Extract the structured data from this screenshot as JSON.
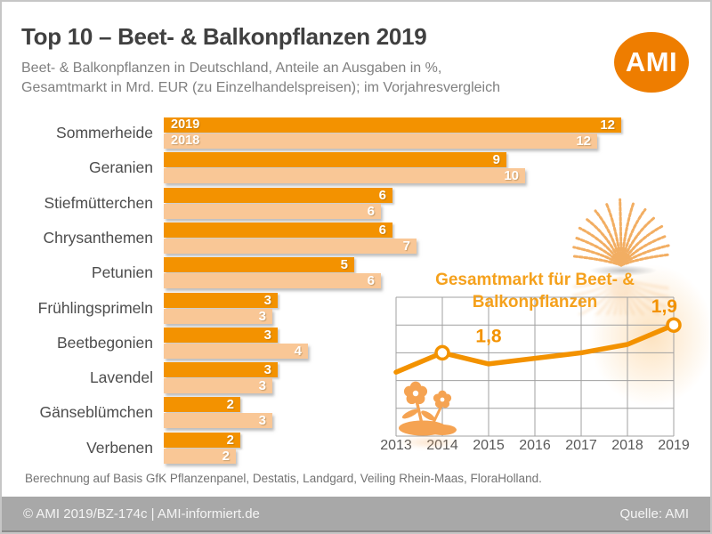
{
  "header": {
    "title": "Top 10 – Beet- & Balkonpflanzen 2019",
    "subtitle_line1": "Beet- & Balkonpflanzen in Deutschland, Anteile an Ausgaben in %,",
    "subtitle_line2": "Gesamtmarkt in Mrd. EUR (zu Einzelhandelspreisen); im Vorjahresvergleich",
    "logo_text": "AMI"
  },
  "colors": {
    "bar_2019_orange": "#f39200",
    "bar_2018_light_orange": "#f9c796",
    "logo_orange": "#ee7d00",
    "inset_title_orange": "#f5a11c",
    "line_orange": "#f39200",
    "grid_gray": "#a0a0a0",
    "heading_gray": "#404040",
    "footer_bar_gray": "#a8a8a8"
  },
  "chart_data": [
    {
      "type": "bar",
      "orientation": "horizontal",
      "title": "Top 10 – Beet- & Balkonpflanzen 2019",
      "unit": "% Anteil an Ausgaben",
      "categories": [
        "Sommerheide",
        "Geranien",
        "Stiefmütterchen",
        "Chrysanthemen",
        "Petunien",
        "Frühlingsprimeln",
        "Beetbegonien",
        "Lavendel",
        "Gänseblümchen",
        "Verbenen"
      ],
      "series": [
        {
          "name": "2019",
          "values": [
            12,
            9,
            6,
            6,
            5,
            3,
            3,
            3,
            2,
            2
          ]
        },
        {
          "name": "2018",
          "values": [
            12,
            10,
            6,
            7,
            6,
            3,
            4,
            3,
            3,
            2
          ]
        }
      ],
      "xlim": [
        0,
        12
      ],
      "value_labels": true
    },
    {
      "type": "line",
      "title": "Gesamtmarkt für Beet- & Balkonpflanzen",
      "title_lines": [
        "Gesamtmarkt für Beet- &",
        "Balkonpflanzen"
      ],
      "unit": "Mrd. EUR",
      "x": [
        "2013",
        "2014",
        "2015",
        "2016",
        "2017",
        "2018",
        "2019"
      ],
      "values": [
        1.73,
        1.8,
        1.76,
        1.78,
        1.8,
        1.83,
        1.9
      ],
      "ylim": [
        1.5,
        2.0
      ],
      "grid": true,
      "labeled_points": [
        {
          "x": "2014",
          "label": "1,8"
        },
        {
          "x": "2019",
          "label": "1,9"
        }
      ]
    }
  ],
  "footnote": "Berechnung auf Basis GfK Pflanzenpanel, Destatis, Landgard, Veiling Rhein-Maas, FloraHolland.",
  "footer": {
    "left": "© AMI 2019/BZ-174c | AMI-informiert.de",
    "right": "Quelle: AMI"
  }
}
